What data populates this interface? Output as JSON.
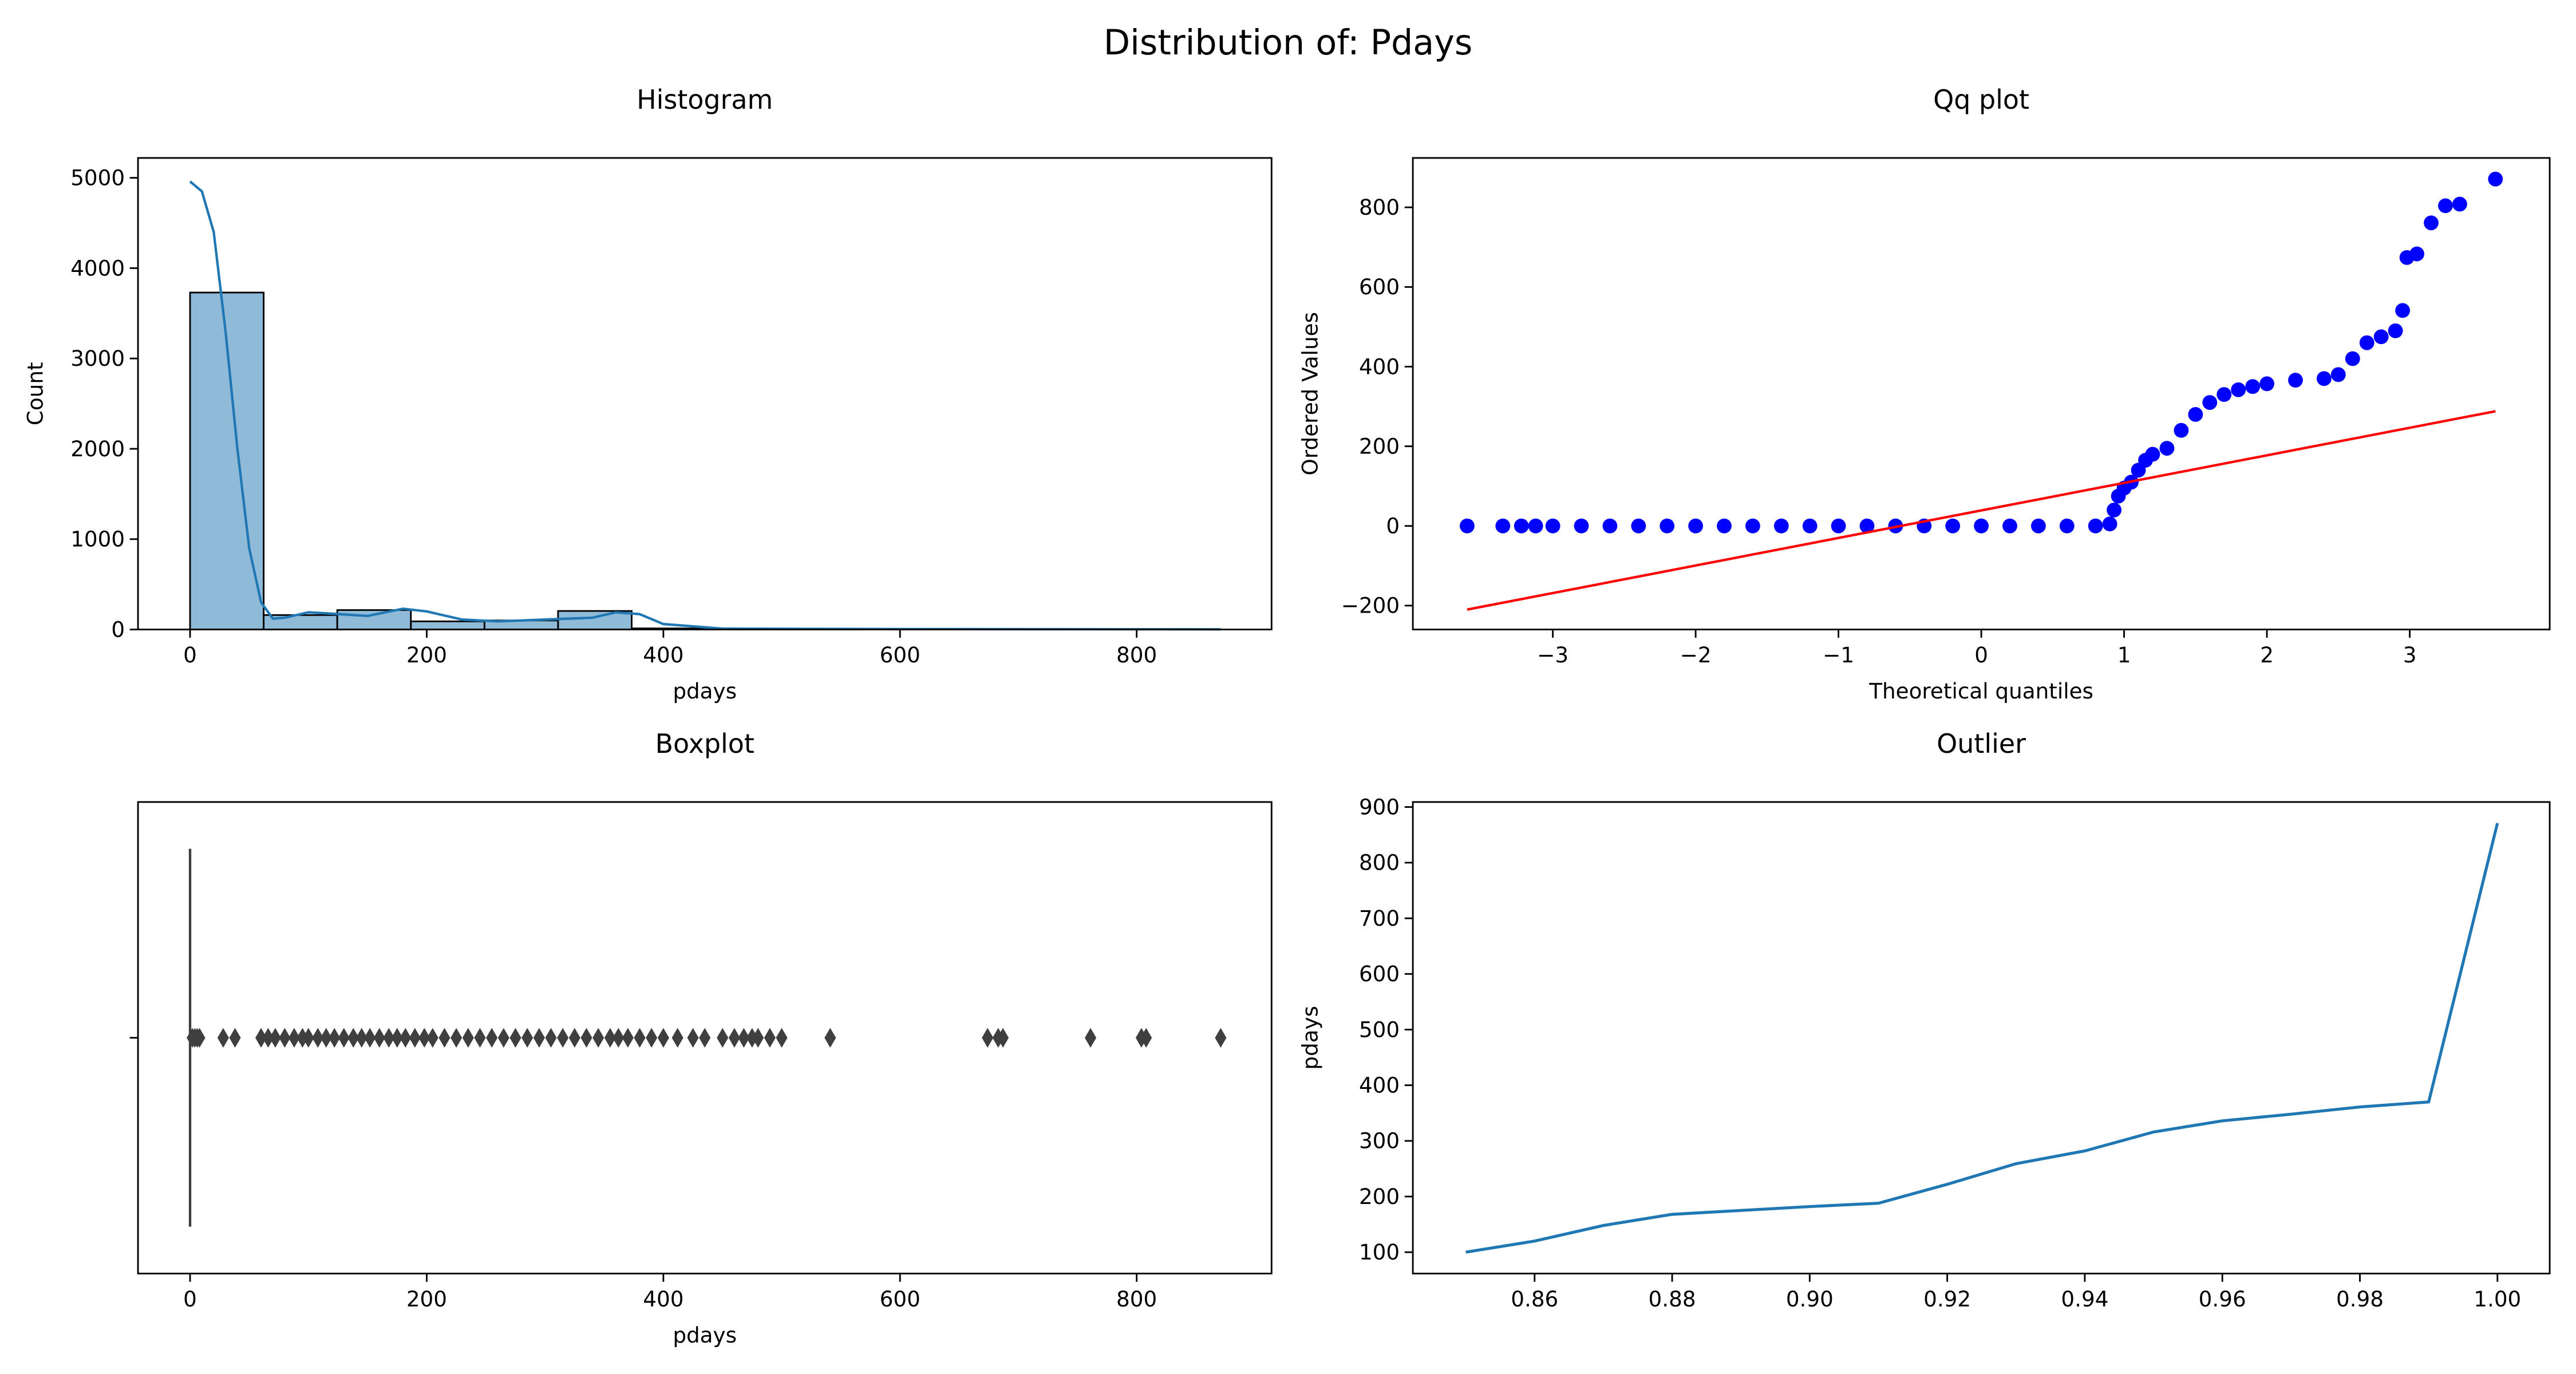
{
  "title": "Distribution of: Pdays",
  "chart_data": [
    {
      "type": "histogram",
      "title": "Histogram",
      "xlabel": "pdays",
      "ylabel": "Count",
      "color": "#1f77b4",
      "bins": [
        0,
        62.2,
        124.4,
        186.6,
        248.8,
        311,
        373.2,
        435.4,
        497.6,
        559.8,
        622,
        684.2,
        746.4,
        808.6,
        870.8
      ],
      "values": [
        3730,
        160,
        215,
        90,
        100,
        205,
        12,
        6,
        3,
        0,
        3,
        4,
        2,
        1
      ],
      "kde": {
        "x": [
          0,
          10,
          20,
          30,
          40,
          50,
          60,
          70,
          80,
          100,
          120,
          150,
          180,
          200,
          230,
          260,
          300,
          340,
          360,
          380,
          400,
          450,
          500,
          600,
          700,
          800,
          871
        ],
        "values": [
          4960,
          4850,
          4400,
          3300,
          2000,
          900,
          300,
          120,
          130,
          190,
          175,
          150,
          230,
          200,
          110,
          90,
          110,
          130,
          190,
          170,
          60,
          10,
          8,
          5,
          4,
          3,
          2
        ]
      },
      "xlim": [
        -44,
        914
      ],
      "ylim": [
        0,
        5220
      ],
      "xticks": [
        0,
        200,
        400,
        600,
        800
      ],
      "yticks": [
        0,
        1000,
        2000,
        3000,
        4000,
        5000
      ]
    },
    {
      "type": "qq",
      "title": "Qq plot",
      "xlabel": "Theoretical quantiles",
      "ylabel": "Ordered Values",
      "color": "#0000ff",
      "line_color": "#ff0000",
      "x": [
        -3.6,
        -3.35,
        -3.22,
        -3.12,
        -3.0,
        -2.8,
        -2.6,
        -2.4,
        -2.2,
        -2.0,
        -1.8,
        -1.6,
        -1.4,
        -1.2,
        -1.0,
        -0.8,
        -0.6,
        -0.4,
        -0.2,
        0,
        0.2,
        0.4,
        0.6,
        0.8,
        0.9,
        0.93,
        0.96,
        1.0,
        1.05,
        1.1,
        1.15,
        1.2,
        1.3,
        1.4,
        1.5,
        1.6,
        1.7,
        1.8,
        1.9,
        2.0,
        2.2,
        2.4,
        2.5,
        2.6,
        2.7,
        2.8,
        2.9,
        2.95,
        2.98,
        3.05,
        3.15,
        3.25,
        3.35,
        3.6
      ],
      "values": [
        0,
        0,
        0,
        0,
        0,
        0,
        0,
        0,
        0,
        0,
        0,
        0,
        0,
        0,
        0,
        0,
        0,
        0,
        0,
        0,
        0,
        0,
        0,
        0,
        5,
        40,
        75,
        95,
        110,
        140,
        165,
        180,
        195,
        240,
        280,
        310,
        330,
        342,
        350,
        357,
        366,
        370,
        380,
        420,
        460,
        475,
        490,
        541,
        674,
        683,
        761,
        804,
        808,
        871
      ],
      "fit": {
        "x": [
          -3.6,
          3.6
        ],
        "values": [
          -210,
          288
        ]
      },
      "xlim": [
        -3.98,
        3.98
      ],
      "ylim": [
        -260,
        924
      ],
      "xticks": [
        {
          "value": -3,
          "label": "−3"
        },
        {
          "value": -2,
          "label": "−2"
        },
        {
          "value": -1,
          "label": "−1"
        },
        0,
        1,
        2,
        3
      ],
      "yticks": [
        {
          "value": -200,
          "label": "−200"
        },
        0,
        200,
        400,
        600,
        800
      ]
    },
    {
      "type": "box",
      "title": "Boxplot",
      "xlabel": "pdays",
      "color": "#3f3f3f",
      "q1": 0,
      "median": 0,
      "q3": 0,
      "whisker_low": 0,
      "whisker_high": 0,
      "outliers": [
        2,
        4,
        6,
        8,
        28,
        38,
        60,
        66,
        72,
        80,
        88,
        95,
        100,
        108,
        115,
        122,
        130,
        138,
        145,
        152,
        160,
        168,
        175,
        182,
        190,
        198,
        205,
        215,
        225,
        235,
        245,
        255,
        265,
        275,
        285,
        295,
        305,
        315,
        325,
        335,
        345,
        355,
        362,
        370,
        380,
        390,
        400,
        412,
        425,
        435,
        450,
        460,
        468,
        475,
        480,
        490,
        500,
        541,
        674,
        683,
        687,
        761,
        804,
        808,
        871
      ],
      "xlim": [
        -44,
        914
      ],
      "xticks": [
        0,
        200,
        400,
        600,
        800
      ]
    },
    {
      "type": "line",
      "title": "Outlier",
      "ylabel": "pdays",
      "color": "#1f77b4",
      "x": [
        0.85,
        0.86,
        0.87,
        0.88,
        0.89,
        0.9,
        0.91,
        0.92,
        0.93,
        0.94,
        0.95,
        0.96,
        0.97,
        0.98,
        0.99,
        1.0
      ],
      "values": [
        100,
        120,
        148,
        168,
        175,
        182,
        188,
        222,
        259,
        282,
        316,
        336,
        348,
        361,
        370,
        871
      ],
      "xlim": [
        0.8423,
        1.0076
      ],
      "ylim": [
        61.6,
        909
      ],
      "xticks": [
        0.86,
        0.88,
        {
          "value": 0.9,
          "label": "0.90"
        },
        0.92,
        0.94,
        0.96,
        0.98,
        {
          "value": 1,
          "label": "1.00"
        }
      ],
      "yticks": [
        100,
        200,
        300,
        400,
        500,
        600,
        700,
        800,
        900
      ]
    }
  ]
}
